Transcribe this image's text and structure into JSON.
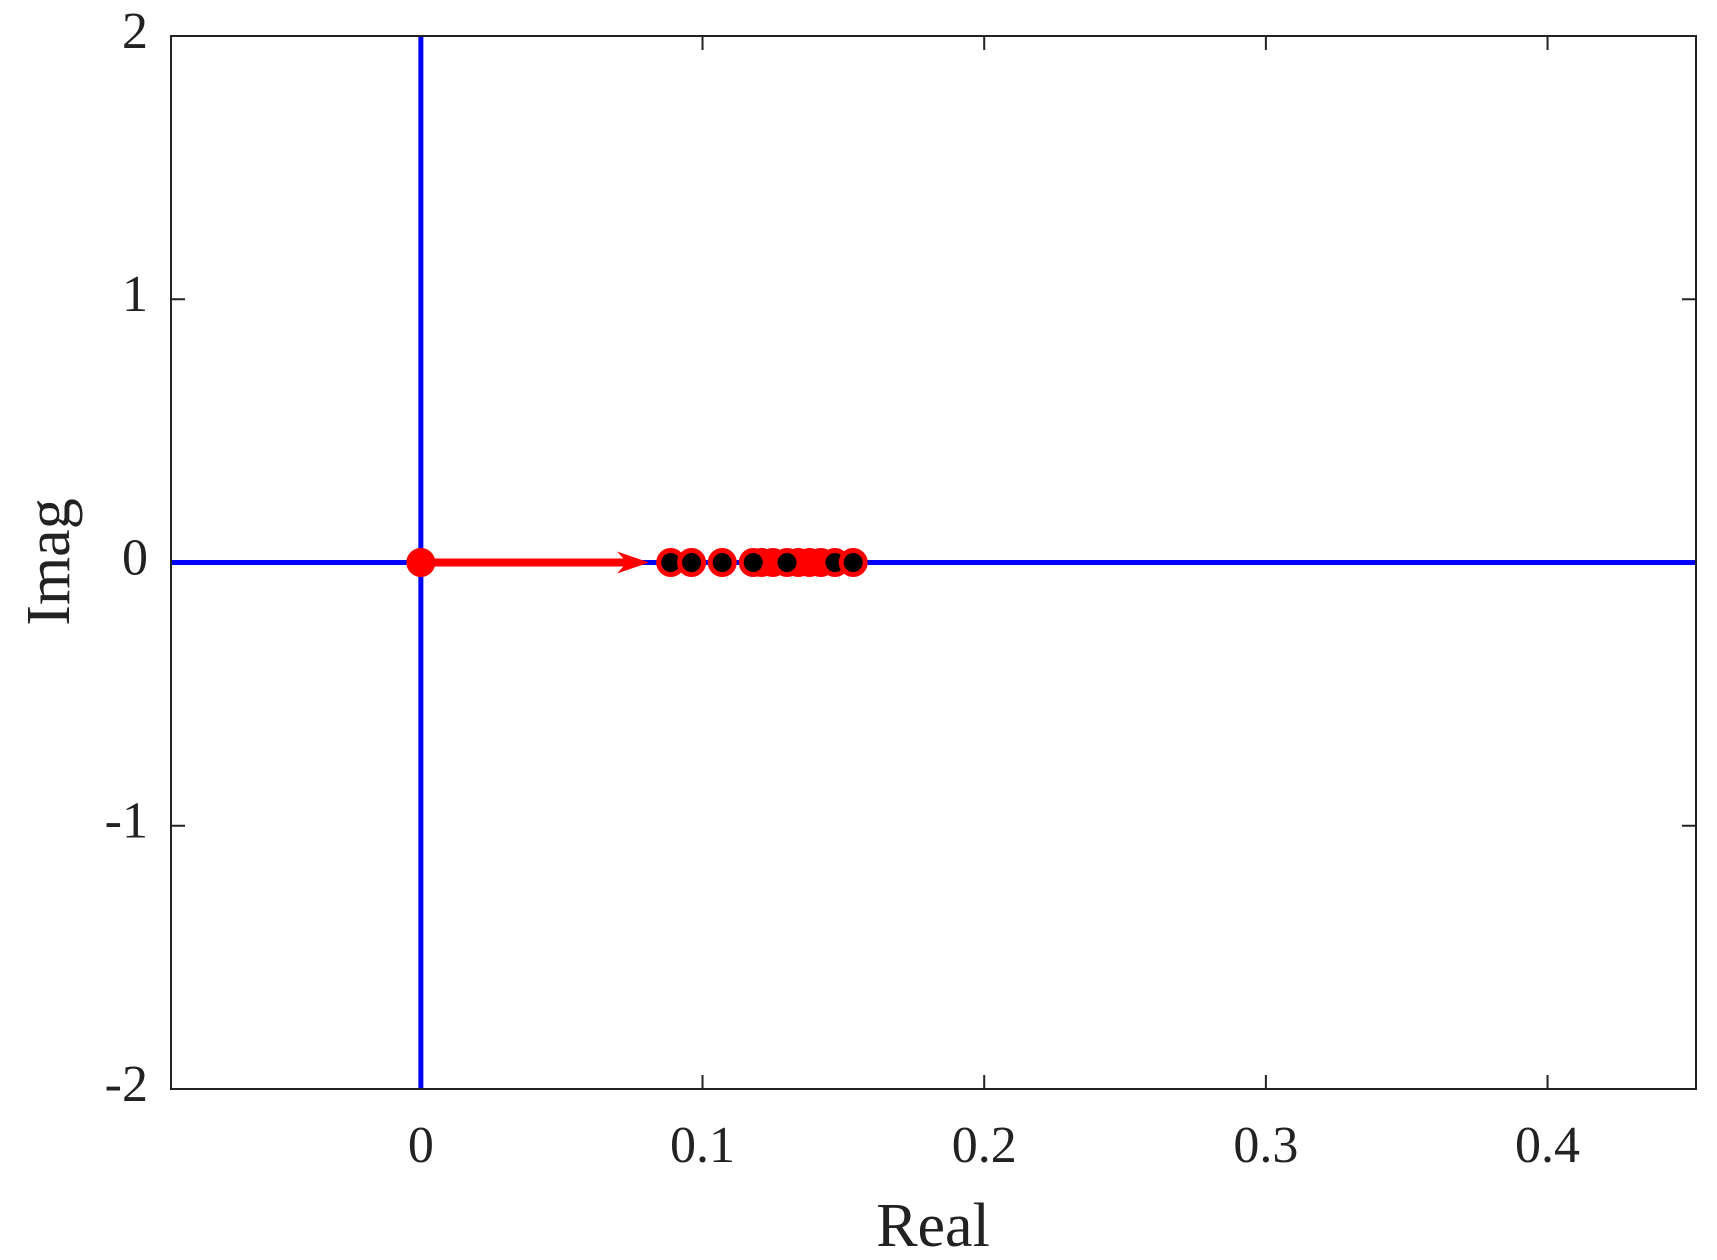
{
  "chart_data": {
    "type": "scatter",
    "x_label": "Real",
    "y_label": "Imag",
    "xlim": [
      -0.0887,
      0.4527
    ],
    "ylim": [
      -2,
      2
    ],
    "xticks": [
      0,
      0.1,
      0.2,
      0.3,
      0.4
    ],
    "yticks": [
      -2,
      -1,
      0,
      1,
      2
    ],
    "reference_lines": {
      "x": [
        0
      ],
      "y": [
        0
      ],
      "color": "#0000ff"
    },
    "arrow": {
      "from": [
        0,
        0
      ],
      "to": [
        0.081,
        0
      ],
      "color": "#ff0000"
    },
    "series": [
      {
        "color": "#ff0000",
        "edge_color": "#ff0000",
        "x": [
          0
        ],
        "values": [
          0
        ]
      },
      {
        "color": "#ff0000",
        "edge_color": "#ff0000",
        "x": [
          0.121,
          0.125,
          0.134,
          0.138,
          0.142
        ],
        "values": [
          0,
          0,
          0,
          0,
          0
        ]
      },
      {
        "color": "#000000",
        "edge_color": "#ff0000",
        "x": [
          0.0887,
          0.0961,
          0.107,
          0.118,
          0.13,
          0.147,
          0.1535
        ],
        "values": [
          0,
          0,
          0,
          0,
          0,
          0,
          0
        ]
      }
    ]
  }
}
